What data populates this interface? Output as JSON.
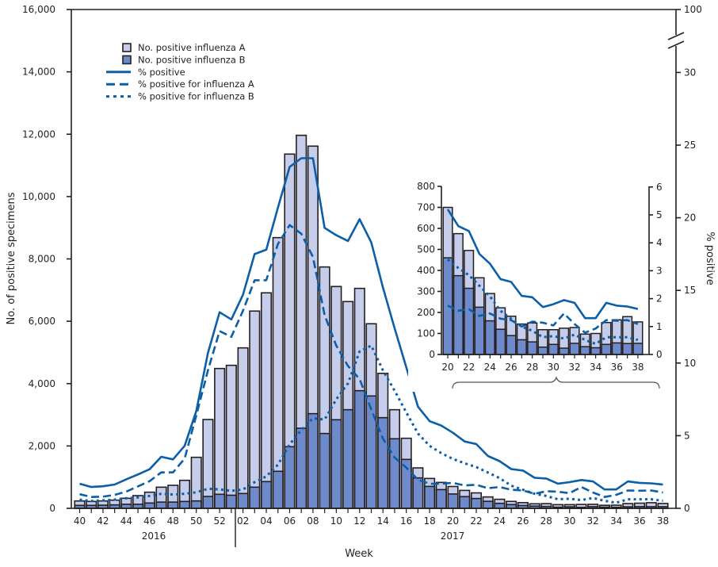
{
  "chart_data": [
    {
      "type": "bar",
      "stacked": true,
      "xlabel": "Week",
      "ylabel": "No. of positive specimens",
      "y2label": "% positive",
      "ylim": [
        0,
        16000
      ],
      "yticks": [
        "0",
        "2,000",
        "4,000",
        "6,000",
        "8,000",
        "10,000",
        "12,000",
        "14,000",
        "16,000"
      ],
      "y2lim": [
        0,
        100
      ],
      "y2_axis_break": [
        30,
        100
      ],
      "y2ticks": [
        "0",
        "5",
        "10",
        "15",
        "20",
        "25",
        "30",
        "100"
      ],
      "year_labels": [
        "2016",
        "2017"
      ],
      "legend_position": "top-left",
      "grid": false,
      "colors": {
        "influenza_a": "#c5cdeb",
        "influenza_b": "#6f8acb",
        "bar_outline": "#231f20",
        "lines": "#0b5ea8"
      },
      "categories": [
        "40",
        "41",
        "42",
        "43",
        "44",
        "45",
        "46",
        "47",
        "48",
        "49",
        "50",
        "51",
        "52",
        "01",
        "02",
        "03",
        "04",
        "05",
        "06",
        "07",
        "08",
        "09",
        "10",
        "11",
        "12",
        "13",
        "14",
        "15",
        "16",
        "17",
        "18",
        "19",
        "20",
        "21",
        "22",
        "23",
        "24",
        "25",
        "26",
        "27",
        "28",
        "29",
        "30",
        "31",
        "32",
        "33",
        "34",
        "35",
        "36",
        "37",
        "38"
      ],
      "series": [
        {
          "name": "No. positive influenza A",
          "kind": "bar",
          "axis": "left",
          "values": [
            142,
            126,
            136,
            152,
            192,
            277,
            347,
            478,
            538,
            678,
            1399,
            2468,
            4035,
            4167,
            4672,
            5649,
            6055,
            7495,
            9387,
            9396,
            8582,
            5342,
            4274,
            3469,
            3282,
            2316,
            1422,
            932,
            678,
            322,
            255,
            231,
            240,
            200,
            180,
            140,
            130,
            102,
            92,
            75,
            90,
            83,
            70,
            95,
            75,
            60,
            68,
            104,
            110,
            128,
            102
          ]
        },
        {
          "name": "No. positive influenza B",
          "kind": "bar",
          "axis": "left",
          "values": [
            94,
            94,
            100,
            110,
            130,
            130,
            170,
            200,
            200,
            220,
            237,
            381,
            450,
            420,
            475,
            678,
            857,
            1188,
            1976,
            2569,
            3036,
            2400,
            2841,
            3163,
            3773,
            3604,
            2908,
            2231,
            1569,
            975,
            703,
            600,
            460,
            375,
            315,
            225,
            160,
            120,
            90,
            70,
            60,
            35,
            48,
            30,
            53,
            37,
            32,
            48,
            55,
            52,
            53
          ]
        },
        {
          "name": "% positive",
          "kind": "line",
          "style": "solid",
          "axis": "right",
          "values": [
            1.69,
            1.47,
            1.52,
            1.64,
            2.0,
            2.33,
            2.69,
            3.55,
            3.37,
            4.3,
            6.7,
            10.7,
            13.5,
            13.0,
            14.7,
            17.5,
            17.8,
            20.7,
            23.5,
            24.1,
            24.1,
            19.3,
            18.8,
            18.4,
            19.9,
            18.3,
            15.2,
            12.4,
            9.7,
            7.0,
            6.0,
            5.7,
            5.2,
            4.6,
            4.42,
            3.6,
            3.25,
            2.7,
            2.6,
            2.1,
            2.05,
            1.7,
            1.8,
            1.95,
            1.85,
            1.3,
            1.3,
            1.85,
            1.75,
            1.72,
            1.63
          ]
        },
        {
          "name": "% positive for influenza A",
          "kind": "line",
          "style": "dashed",
          "axis": "right",
          "values": [
            0.97,
            0.78,
            0.8,
            0.93,
            1.15,
            1.51,
            1.87,
            2.47,
            2.47,
            3.42,
            6.4,
            9.5,
            12.2,
            11.8,
            13.6,
            15.7,
            15.7,
            18.2,
            19.5,
            18.9,
            17.3,
            13.3,
            11.2,
            9.8,
            8.9,
            6.8,
            4.8,
            3.5,
            2.8,
            1.97,
            1.69,
            1.69,
            1.75,
            1.57,
            1.62,
            1.38,
            1.47,
            1.28,
            1.23,
            1.0,
            1.18,
            1.14,
            1.04,
            1.47,
            1.09,
            0.78,
            0.93,
            1.23,
            1.21,
            1.23,
            1.09
          ]
        },
        {
          "name": "% positive for influenza B",
          "kind": "line",
          "style": "dotted",
          "axis": "right",
          "values": [
            0.6,
            0.5,
            0.55,
            0.6,
            0.7,
            0.75,
            0.85,
            1.0,
            0.95,
            1.0,
            1.1,
            1.35,
            1.3,
            1.2,
            1.3,
            1.8,
            2.2,
            3.0,
            4.4,
            5.4,
            6.2,
            6.1,
            7.5,
            8.6,
            10.8,
            11.2,
            9.5,
            8.1,
            6.6,
            5.15,
            4.3,
            3.8,
            3.4,
            3.1,
            2.84,
            2.46,
            2.08,
            1.56,
            1.28,
            1.0,
            0.85,
            0.62,
            0.66,
            0.57,
            0.71,
            0.52,
            0.38,
            0.62,
            0.62,
            0.62,
            0.52
          ]
        }
      ]
    },
    {
      "type": "bar",
      "stacked": true,
      "inset_of_weeks": [
        "20",
        "38"
      ],
      "ylim": [
        0,
        800
      ],
      "yticks": [
        "0",
        "100",
        "200",
        "300",
        "400",
        "500",
        "600",
        "700",
        "800"
      ],
      "y2lim": [
        0,
        6
      ],
      "y2ticks": [
        "0",
        "1",
        "2",
        "3",
        "4",
        "5",
        "6"
      ],
      "categories": [
        "20",
        "21",
        "22",
        "23",
        "24",
        "25",
        "26",
        "27",
        "28",
        "29",
        "30",
        "31",
        "32",
        "33",
        "34",
        "35",
        "36",
        "37",
        "38"
      ],
      "xticklabels": [
        "20",
        "22",
        "24",
        "26",
        "28",
        "30",
        "32",
        "34",
        "36",
        "38"
      ]
    }
  ],
  "legend": [
    {
      "label": "No. positive influenza A",
      "symbol": "box-a"
    },
    {
      "label": "No. positive influenza B",
      "symbol": "box-b"
    },
    {
      "label": "% positive",
      "symbol": "solid"
    },
    {
      "label": "% positive for influenza A",
      "symbol": "dashed"
    },
    {
      "label": "% positive for influenza B",
      "symbol": "dotted"
    }
  ]
}
